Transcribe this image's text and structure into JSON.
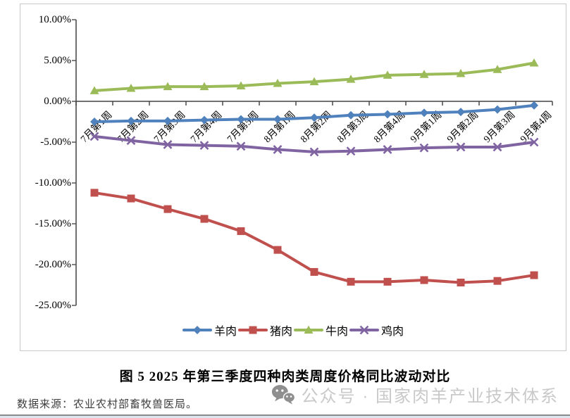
{
  "figure": {
    "caption": "图 5  2025 年第三季度四种肉类周度价格同比波动对比",
    "source_note": "数据来源：农业农村部畜牧兽医局。",
    "watermark": {
      "icon": "wechat-icon",
      "text": "公众号 · 国家肉羊产业技术体系"
    }
  },
  "chart_data": {
    "type": "line",
    "title": "",
    "xlabel": "",
    "ylabel": "",
    "grid": false,
    "legend_position": "bottom",
    "categories": [
      "7月第1周",
      "7月第2周",
      "7月第3周",
      "7月第4周",
      "7月第5周",
      "8月第1周",
      "8月第2周",
      "8月第3周",
      "8月第4周",
      "9月第1周",
      "9月第2周",
      "9月第3周",
      "9月第4周"
    ],
    "series": [
      {
        "name": "羊肉",
        "color": "#4F81BD",
        "marker": "diamond",
        "values": [
          -2.5,
          -2.4,
          -2.4,
          -2.3,
          -2.2,
          -2.2,
          -2.0,
          -1.7,
          -1.6,
          -1.4,
          -1.3,
          -1.0,
          -0.5
        ]
      },
      {
        "name": "猪肉",
        "color": "#C0504D",
        "marker": "square",
        "values": [
          -11.2,
          -11.9,
          -13.2,
          -14.4,
          -15.9,
          -18.2,
          -20.9,
          -22.1,
          -22.1,
          -21.9,
          -22.2,
          -22.0,
          -21.3
        ]
      },
      {
        "name": "牛肉",
        "color": "#9BBB59",
        "marker": "triangle",
        "values": [
          1.3,
          1.6,
          1.8,
          1.8,
          1.9,
          2.2,
          2.4,
          2.7,
          3.2,
          3.3,
          3.4,
          3.9,
          4.7
        ]
      },
      {
        "name": "鸡肉",
        "color": "#8064A2",
        "marker": "x",
        "values": [
          -4.3,
          -4.8,
          -5.3,
          -5.4,
          -5.5,
          -5.9,
          -6.2,
          -6.1,
          -5.9,
          -5.7,
          -5.6,
          -5.6,
          -5.0
        ]
      }
    ],
    "y_axis": {
      "min": -25,
      "max": 10,
      "step": 5,
      "tick_labels": [
        "10.00%",
        "5.00%",
        "0.00%",
        "-5.00%",
        "-10.00%",
        "-15.00%",
        "-20.00%",
        "-25.00%"
      ]
    }
  }
}
